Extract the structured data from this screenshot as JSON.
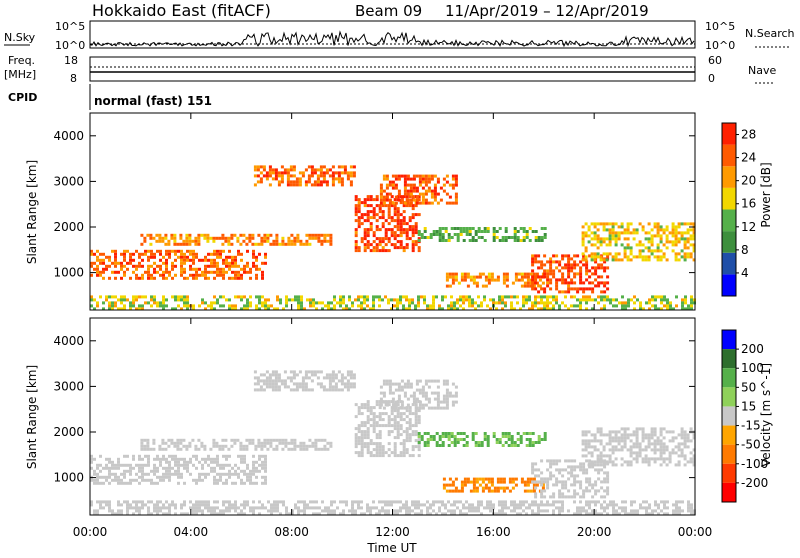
{
  "header": {
    "station": "Hokkaido East (fitACF)",
    "beam": "Beam 09",
    "date_range": "11/Apr/2019 – 12/Apr/2019"
  },
  "top_panels": {
    "nsky_label": "N.Sky",
    "nsearch_label": "N.Search",
    "noise_tick_high": "10^5",
    "noise_tick_low": "10^0",
    "freq_label": "Freq.",
    "freq_unit": "[MHz]",
    "freq_tick_high": "18",
    "freq_tick_low": "8",
    "nave_label": "Nave",
    "nave_tick_high": "60",
    "nave_tick_low": "0",
    "cpid_label": "CPID",
    "cpid_value": "normal (fast) 151"
  },
  "colors": {
    "power_scale": [
      "#0000ff",
      "#1f4fa8",
      "#3d8f3d",
      "#55b04a",
      "#f2d700",
      "#ff9a00",
      "#ff5a00",
      "#ff2000"
    ],
    "velocity_scale": [
      "#0000ff",
      "#2d6e2d",
      "#55b04a",
      "#8fd15a",
      "#c8c8c8",
      "#ffa500",
      "#ff7a00",
      "#ff3a00",
      "#ff0000"
    ],
    "ground_scatter": "#c8c8c8"
  },
  "chart_data": [
    {
      "type": "heatmap",
      "name": "power-panel",
      "ylabel": "Slant Range [km]",
      "xlabel": "",
      "x_ticks": [
        "00:00",
        "04:00",
        "08:00",
        "12:00",
        "16:00",
        "20:00",
        "00:00"
      ],
      "x_range_hours": [
        0,
        24
      ],
      "y_ticks": [
        1000,
        2000,
        3000,
        4000
      ],
      "ylim": [
        180,
        4500
      ],
      "colorbar": {
        "label": "Power [dB]",
        "ticks": [
          4,
          8,
          12,
          16,
          20,
          24,
          28
        ],
        "range": [
          0,
          30
        ]
      },
      "scatter_regions": [
        {
          "t0": 0.0,
          "t1": 24.0,
          "r0": 180,
          "r1": 500,
          "level": 16
        },
        {
          "t0": 0.0,
          "t1": 7.0,
          "r0": 900,
          "r1": 1500,
          "level": 24
        },
        {
          "t0": 2.0,
          "t1": 9.5,
          "r0": 1600,
          "r1": 1850,
          "level": 22
        },
        {
          "t0": 6.5,
          "t1": 10.5,
          "r0": 2900,
          "r1": 3350,
          "level": 24
        },
        {
          "t0": 10.5,
          "t1": 13.0,
          "r0": 1500,
          "r1": 2700,
          "level": 26
        },
        {
          "t0": 11.5,
          "t1": 14.5,
          "r0": 2500,
          "r1": 3150,
          "level": 24
        },
        {
          "t0": 13.0,
          "t1": 18.0,
          "r0": 1700,
          "r1": 2000,
          "level": 12
        },
        {
          "t0": 14.0,
          "t1": 18.0,
          "r0": 700,
          "r1": 1000,
          "level": 22
        },
        {
          "t0": 17.5,
          "t1": 20.5,
          "r0": 600,
          "r1": 1400,
          "level": 26
        },
        {
          "t0": 19.5,
          "t1": 24.0,
          "r0": 1300,
          "r1": 2100,
          "level": 18
        }
      ]
    },
    {
      "type": "heatmap",
      "name": "velocity-panel",
      "ylabel": "Slant Range [km]",
      "xlabel": "Time UT",
      "x_ticks": [
        "00:00",
        "04:00",
        "08:00",
        "12:00",
        "16:00",
        "20:00",
        "00:00"
      ],
      "x_range_hours": [
        0,
        24
      ],
      "y_ticks": [
        1000,
        2000,
        3000,
        4000
      ],
      "ylim": [
        180,
        4500
      ],
      "colorbar": {
        "label": "Velocity [m s^-1]",
        "ticks": [
          200,
          100,
          50,
          15,
          -15,
          -50,
          -100,
          -200
        ],
        "range": [
          -250,
          250
        ]
      },
      "scatter_regions": [
        {
          "t0": 0.0,
          "t1": 24.0,
          "r0": 180,
          "r1": 500,
          "level": 0
        },
        {
          "t0": 0.0,
          "t1": 7.0,
          "r0": 900,
          "r1": 1500,
          "level": 0
        },
        {
          "t0": 2.0,
          "t1": 9.5,
          "r0": 1600,
          "r1": 1850,
          "level": 0
        },
        {
          "t0": 6.5,
          "t1": 10.5,
          "r0": 2900,
          "r1": 3350,
          "level": 0
        },
        {
          "t0": 10.5,
          "t1": 13.0,
          "r0": 1500,
          "r1": 2700,
          "level": 0
        },
        {
          "t0": 11.5,
          "t1": 14.5,
          "r0": 2500,
          "r1": 3150,
          "level": 0
        },
        {
          "t0": 13.0,
          "t1": 18.0,
          "r0": 1700,
          "r1": 2000,
          "level": 60
        },
        {
          "t0": 14.0,
          "t1": 18.0,
          "r0": 700,
          "r1": 1000,
          "level": -60
        },
        {
          "t0": 17.5,
          "t1": 20.5,
          "r0": 600,
          "r1": 1400,
          "level": 0
        },
        {
          "t0": 19.5,
          "t1": 24.0,
          "r0": 1300,
          "r1": 2100,
          "level": 0
        }
      ]
    }
  ]
}
